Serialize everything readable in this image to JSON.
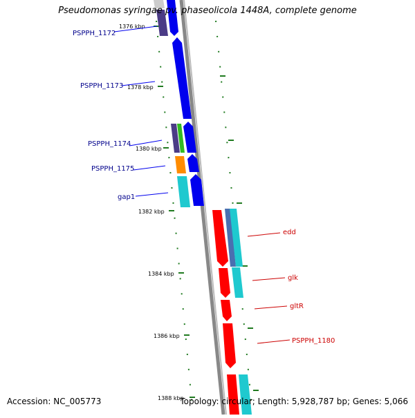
{
  "title": "Pseudomonas syringae pv. phaseolicola 1448A, complete genome",
  "footer": {
    "accession": "Accession: NC_005773",
    "summary": "Topology: circular; Length: 5,928,787 bp; Genes: 5,066"
  },
  "colors": {
    "blue": "#0000ee",
    "dark_purple": "#4b3b86",
    "red": "#ff0000",
    "cyan": "#1fc9cf",
    "orange": "#ff8c00",
    "green": "#33bb22",
    "steel": "#4a6fb0",
    "gray": "#888888",
    "tick_green": "#1f7a1f",
    "label_blue": "#00008b",
    "label_red": "#cc0000"
  },
  "scale_labels": [
    "1376 kbp",
    "1378 kbp",
    "1380 kbp",
    "1382 kbp",
    "1384 kbp",
    "1386 kbp",
    "1388 kbp"
  ],
  "gene_labels_left": [
    "PSPPH_1172",
    "PSPPH_1173",
    "PSPPH_1174",
    "PSPPH_1175",
    "gap1"
  ],
  "gene_labels_right": [
    "edd",
    "glk",
    "gltR",
    "PSPPH_1180"
  ]
}
